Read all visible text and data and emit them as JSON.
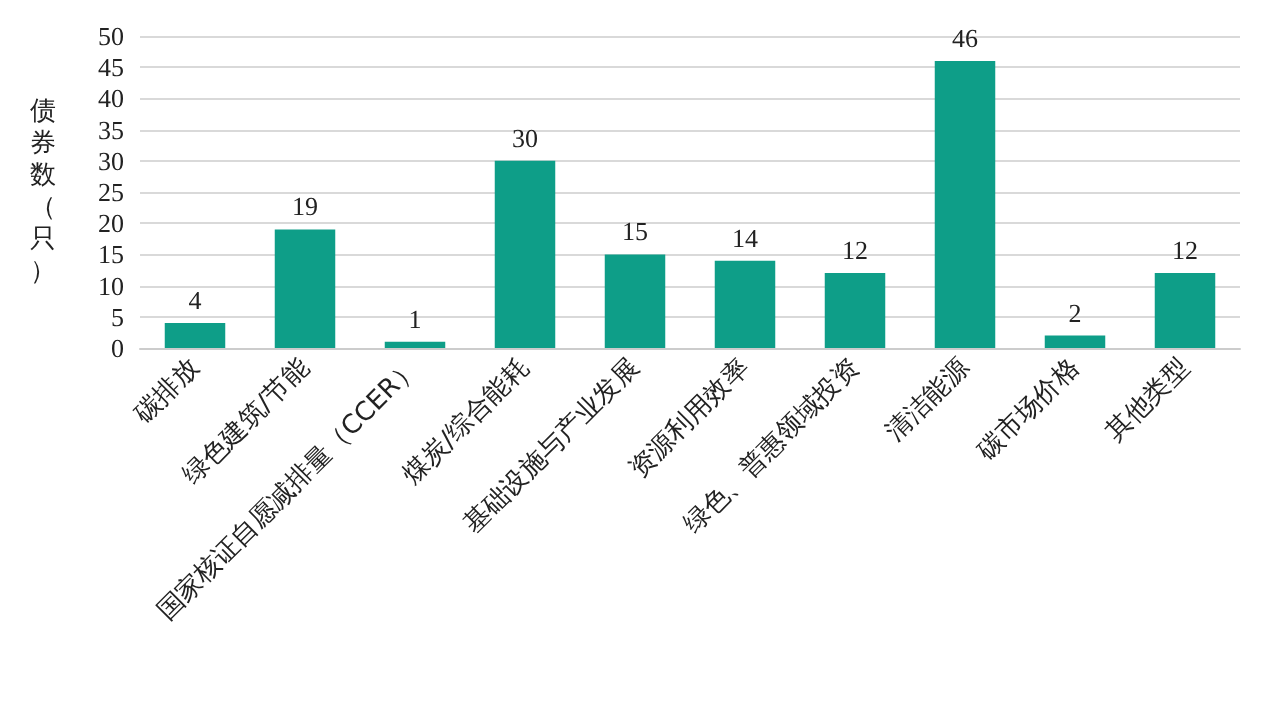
{
  "chart_data": {
    "type": "bar",
    "ylabel": "债券数（只）",
    "categories": [
      "碳排放",
      "绿色建筑/节能",
      "国家核证自愿减排量（CCER）",
      "煤炭/综合能耗",
      "基础设施与产业发展",
      "资源利用效率",
      "绿色、普惠领域投资",
      "清洁能源",
      "碳市场价格",
      "其他类型"
    ],
    "values": [
      4,
      19,
      1,
      30,
      15,
      14,
      12,
      46,
      2,
      12
    ],
    "color": "#0e9e88",
    "data_labels": true,
    "ylim": [
      0,
      50
    ],
    "yticks": [
      0,
      5,
      10,
      15,
      20,
      25,
      30,
      35,
      40,
      45,
      50
    ],
    "grid": "y"
  }
}
